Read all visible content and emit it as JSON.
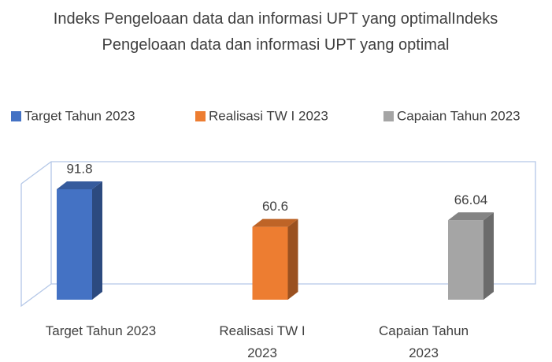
{
  "chart_data": {
    "type": "bar3d",
    "title": "Indeks Pengeloaan data dan informasi UPT yang optimalIndeks Pengeloaan data dan informasi UPT yang optimal",
    "categories": [
      "Target Tahun 2023",
      "Realisasi TW I 2023",
      "Capaian Tahun 2023"
    ],
    "values": [
      91.8,
      60.6,
      66.04
    ],
    "colors": [
      "#4472c4",
      "#ed7d31",
      "#a5a5a5"
    ],
    "legend": "top"
  }
}
